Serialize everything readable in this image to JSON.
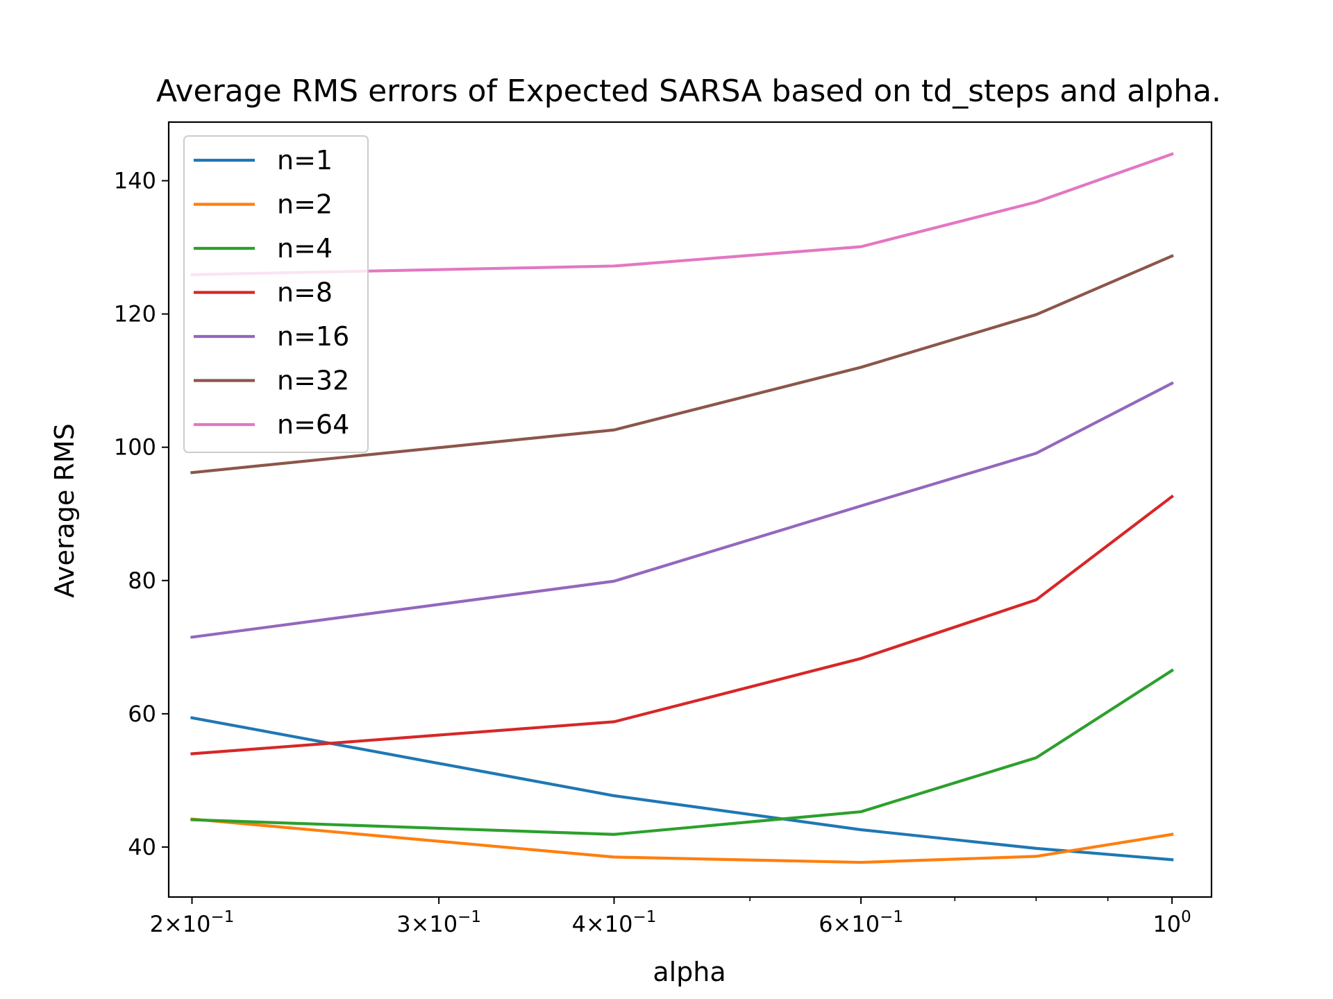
{
  "chart_data": {
    "type": "line",
    "title": "Average RMS errors of Expected SARSA based on td_steps and alpha.",
    "xlabel": "alpha",
    "ylabel": "Average RMS",
    "xscale": "log",
    "x": [
      0.2,
      0.4,
      0.6,
      0.8,
      1.0
    ],
    "xlim": [
      0.1925,
      1.067
    ],
    "ylim": [
      32.5,
      148.8
    ],
    "yticks": [
      40,
      60,
      80,
      100,
      120,
      140
    ],
    "ytick_labels": [
      "40",
      "60",
      "80",
      "100",
      "120",
      "140"
    ],
    "xticks": [
      {
        "value": 0.2,
        "mantissa": "2",
        "exp": "−1"
      },
      {
        "value": 0.3,
        "mantissa": "3",
        "exp": "−1"
      },
      {
        "value": 0.4,
        "mantissa": "4",
        "exp": "−1"
      },
      {
        "value": 0.6,
        "mantissa": "6",
        "exp": "−1"
      },
      {
        "value": 1.0,
        "mantissa": "",
        "exp": "0"
      }
    ],
    "minor_xticks": [
      0.5,
      0.7,
      0.8,
      0.9
    ],
    "legend_position": "upper-left",
    "grid": false,
    "series": [
      {
        "name": "n=1",
        "color": "#1f77b4",
        "values": [
          59.4,
          47.7,
          42.6,
          39.8,
          38.1
        ]
      },
      {
        "name": "n=2",
        "color": "#ff7f0e",
        "values": [
          44.2,
          38.5,
          37.7,
          38.6,
          41.9
        ]
      },
      {
        "name": "n=4",
        "color": "#2ca02c",
        "values": [
          44.1,
          41.9,
          45.3,
          53.4,
          66.5
        ]
      },
      {
        "name": "n=8",
        "color": "#d62728",
        "values": [
          54.0,
          58.8,
          68.3,
          77.1,
          92.6
        ]
      },
      {
        "name": "n=16",
        "color": "#9467bd",
        "values": [
          71.5,
          79.9,
          91.2,
          99.1,
          109.6
        ]
      },
      {
        "name": "n=32",
        "color": "#8c564b",
        "values": [
          96.2,
          102.6,
          112.0,
          119.9,
          128.7
        ]
      },
      {
        "name": "n=64",
        "color": "#e377c2",
        "values": [
          125.9,
          127.2,
          130.1,
          136.8,
          144.0
        ]
      }
    ]
  }
}
